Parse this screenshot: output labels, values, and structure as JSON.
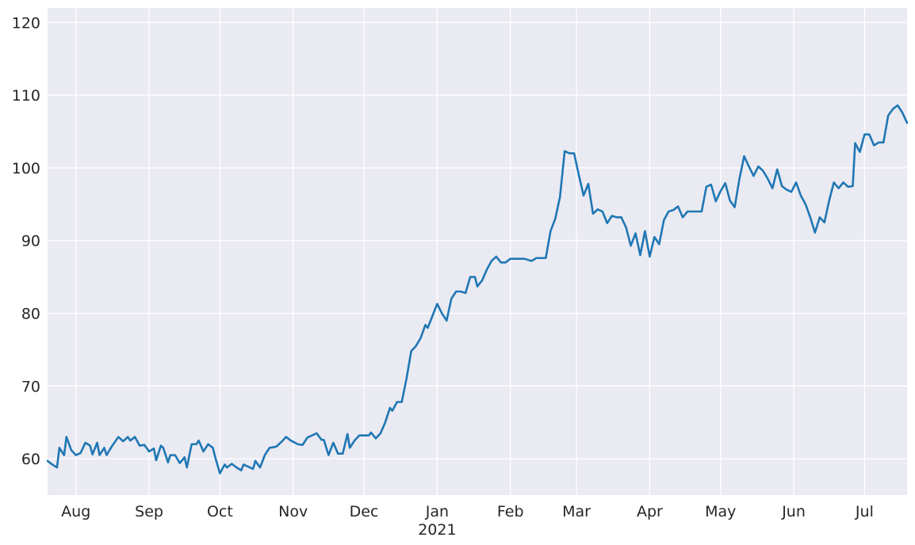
{
  "chart_data": {
    "type": "line",
    "title": "",
    "xlabel": "",
    "ylabel": "",
    "x_range": [
      "2020-07-20",
      "2021-07-19"
    ],
    "ylim": [
      55,
      122
    ],
    "grid": true,
    "legend": "none",
    "colors": {
      "background": "#EAEAF2",
      "grid": "#FFFFFF",
      "line": "#1F77B4",
      "text": "#262626"
    },
    "y_ticks": [
      60,
      70,
      80,
      90,
      100,
      110,
      120
    ],
    "x_ticks": [
      {
        "date": "2020-08-01",
        "label": "Aug"
      },
      {
        "date": "2020-09-01",
        "label": "Sep"
      },
      {
        "date": "2020-10-01",
        "label": "Oct"
      },
      {
        "date": "2020-11-01",
        "label": "Nov"
      },
      {
        "date": "2020-12-01",
        "label": "Dec"
      },
      {
        "date": "2021-01-01",
        "label": "Jan",
        "sublabel": "2021"
      },
      {
        "date": "2021-02-01",
        "label": "Feb"
      },
      {
        "date": "2021-03-01",
        "label": "Mar"
      },
      {
        "date": "2021-04-01",
        "label": "Apr"
      },
      {
        "date": "2021-05-01",
        "label": "May"
      },
      {
        "date": "2021-06-01",
        "label": "Jun"
      },
      {
        "date": "2021-07-01",
        "label": "Jul"
      }
    ],
    "series": [
      {
        "points": [
          [
            "2020-07-20",
            59.7
          ],
          [
            "2020-07-22",
            59.2
          ],
          [
            "2020-07-24",
            58.8
          ],
          [
            "2020-07-25",
            61.5
          ],
          [
            "2020-07-27",
            60.5
          ],
          [
            "2020-07-28",
            63.0
          ],
          [
            "2020-07-30",
            61.2
          ],
          [
            "2020-08-01",
            60.5
          ],
          [
            "2020-08-03",
            60.8
          ],
          [
            "2020-08-05",
            62.2
          ],
          [
            "2020-08-07",
            61.8
          ],
          [
            "2020-08-08",
            60.6
          ],
          [
            "2020-08-10",
            62.2
          ],
          [
            "2020-08-11",
            60.5
          ],
          [
            "2020-08-13",
            61.5
          ],
          [
            "2020-08-14",
            60.5
          ],
          [
            "2020-08-16",
            61.6
          ],
          [
            "2020-08-19",
            63.0
          ],
          [
            "2020-08-21",
            62.4
          ],
          [
            "2020-08-23",
            63.0
          ],
          [
            "2020-08-24",
            62.5
          ],
          [
            "2020-08-26",
            63.0
          ],
          [
            "2020-08-28",
            61.8
          ],
          [
            "2020-08-30",
            61.9
          ],
          [
            "2020-09-01",
            61.0
          ],
          [
            "2020-09-03",
            61.4
          ],
          [
            "2020-09-04",
            59.8
          ],
          [
            "2020-09-06",
            61.8
          ],
          [
            "2020-09-07",
            61.5
          ],
          [
            "2020-09-09",
            59.5
          ],
          [
            "2020-09-10",
            60.5
          ],
          [
            "2020-09-12",
            60.5
          ],
          [
            "2020-09-14",
            59.4
          ],
          [
            "2020-09-16",
            60.2
          ],
          [
            "2020-09-17",
            58.8
          ],
          [
            "2020-09-19",
            62.0
          ],
          [
            "2020-09-21",
            62.0
          ],
          [
            "2020-09-22",
            62.5
          ],
          [
            "2020-09-24",
            61.0
          ],
          [
            "2020-09-26",
            62.0
          ],
          [
            "2020-09-28",
            61.5
          ],
          [
            "2020-09-29",
            60.2
          ],
          [
            "2020-10-01",
            58.0
          ],
          [
            "2020-10-03",
            59.2
          ],
          [
            "2020-10-04",
            58.8
          ],
          [
            "2020-10-06",
            59.3
          ],
          [
            "2020-10-08",
            58.8
          ],
          [
            "2020-10-10",
            58.4
          ],
          [
            "2020-10-11",
            59.2
          ],
          [
            "2020-10-13",
            58.9
          ],
          [
            "2020-10-15",
            58.6
          ],
          [
            "2020-10-16",
            59.7
          ],
          [
            "2020-10-18",
            58.8
          ],
          [
            "2020-10-20",
            60.5
          ],
          [
            "2020-10-22",
            61.5
          ],
          [
            "2020-10-24",
            61.6
          ],
          [
            "2020-10-25",
            61.7
          ],
          [
            "2020-10-27",
            62.3
          ],
          [
            "2020-10-29",
            63.0
          ],
          [
            "2020-10-31",
            62.5
          ],
          [
            "2020-11-03",
            62.0
          ],
          [
            "2020-11-05",
            61.9
          ],
          [
            "2020-11-07",
            62.9
          ],
          [
            "2020-11-09",
            63.2
          ],
          [
            "2020-11-11",
            63.5
          ],
          [
            "2020-11-13",
            62.6
          ],
          [
            "2020-11-14",
            62.6
          ],
          [
            "2020-11-16",
            60.5
          ],
          [
            "2020-11-18",
            62.2
          ],
          [
            "2020-11-20",
            60.7
          ],
          [
            "2020-11-22",
            60.7
          ],
          [
            "2020-11-24",
            63.4
          ],
          [
            "2020-11-25",
            61.5
          ],
          [
            "2020-11-27",
            62.5
          ],
          [
            "2020-11-29",
            63.2
          ],
          [
            "2020-12-01",
            63.2
          ],
          [
            "2020-12-03",
            63.2
          ],
          [
            "2020-12-04",
            63.6
          ],
          [
            "2020-12-06",
            62.8
          ],
          [
            "2020-12-08",
            63.5
          ],
          [
            "2020-12-10",
            65.0
          ],
          [
            "2020-12-12",
            67.0
          ],
          [
            "2020-12-13",
            66.6
          ],
          [
            "2020-12-15",
            67.8
          ],
          [
            "2020-12-17",
            67.8
          ],
          [
            "2020-12-19",
            71.0
          ],
          [
            "2020-12-21",
            74.8
          ],
          [
            "2020-12-23",
            75.5
          ],
          [
            "2020-12-25",
            76.6
          ],
          [
            "2020-12-27",
            78.4
          ],
          [
            "2020-12-28",
            78.0
          ],
          [
            "2021-01-01",
            81.3
          ],
          [
            "2021-01-03",
            80.0
          ],
          [
            "2021-01-05",
            79.0
          ],
          [
            "2021-01-07",
            82.0
          ],
          [
            "2021-01-09",
            83.0
          ],
          [
            "2021-01-11",
            83.0
          ],
          [
            "2021-01-13",
            82.8
          ],
          [
            "2021-01-15",
            85.0
          ],
          [
            "2021-01-17",
            85.0
          ],
          [
            "2021-01-18",
            83.7
          ],
          [
            "2021-01-20",
            84.5
          ],
          [
            "2021-01-22",
            86.0
          ],
          [
            "2021-01-24",
            87.2
          ],
          [
            "2021-01-26",
            87.8
          ],
          [
            "2021-01-28",
            87.0
          ],
          [
            "2021-01-30",
            87.0
          ],
          [
            "2021-02-01",
            87.5
          ],
          [
            "2021-02-03",
            87.5
          ],
          [
            "2021-02-05",
            87.5
          ],
          [
            "2021-02-07",
            87.5
          ],
          [
            "2021-02-10",
            87.2
          ],
          [
            "2021-02-12",
            87.6
          ],
          [
            "2021-02-14",
            87.6
          ],
          [
            "2021-02-16",
            87.6
          ],
          [
            "2021-02-18",
            91.3
          ],
          [
            "2021-02-20",
            93.0
          ],
          [
            "2021-02-22",
            96.0
          ],
          [
            "2021-02-24",
            102.3
          ],
          [
            "2021-02-26",
            102.0
          ],
          [
            "2021-02-28",
            102.0
          ],
          [
            "2021-03-02",
            99.0
          ],
          [
            "2021-03-04",
            96.2
          ],
          [
            "2021-03-06",
            97.8
          ],
          [
            "2021-03-08",
            93.7
          ],
          [
            "2021-03-10",
            94.3
          ],
          [
            "2021-03-12",
            94.0
          ],
          [
            "2021-03-14",
            92.4
          ],
          [
            "2021-03-16",
            93.4
          ],
          [
            "2021-03-18",
            93.2
          ],
          [
            "2021-03-20",
            93.2
          ],
          [
            "2021-03-22",
            91.8
          ],
          [
            "2021-03-24",
            89.3
          ],
          [
            "2021-03-26",
            91.0
          ],
          [
            "2021-03-28",
            88.0
          ],
          [
            "2021-03-30",
            91.3
          ],
          [
            "2021-04-01",
            87.8
          ],
          [
            "2021-04-03",
            90.5
          ],
          [
            "2021-04-05",
            89.5
          ],
          [
            "2021-04-07",
            92.8
          ],
          [
            "2021-04-09",
            94.0
          ],
          [
            "2021-04-11",
            94.2
          ],
          [
            "2021-04-13",
            94.7
          ],
          [
            "2021-04-15",
            93.2
          ],
          [
            "2021-04-17",
            94.0
          ],
          [
            "2021-04-19",
            94.0
          ],
          [
            "2021-04-21",
            94.0
          ],
          [
            "2021-04-23",
            94.0
          ],
          [
            "2021-04-25",
            97.4
          ],
          [
            "2021-04-27",
            97.7
          ],
          [
            "2021-04-29",
            95.4
          ],
          [
            "2021-05-01",
            96.8
          ],
          [
            "2021-05-03",
            97.9
          ],
          [
            "2021-05-05",
            95.5
          ],
          [
            "2021-05-07",
            94.6
          ],
          [
            "2021-05-09",
            98.5
          ],
          [
            "2021-05-11",
            101.6
          ],
          [
            "2021-05-13",
            100.2
          ],
          [
            "2021-05-15",
            98.9
          ],
          [
            "2021-05-17",
            100.2
          ],
          [
            "2021-05-19",
            99.6
          ],
          [
            "2021-05-21",
            98.5
          ],
          [
            "2021-05-23",
            97.2
          ],
          [
            "2021-05-25",
            99.8
          ],
          [
            "2021-05-27",
            97.5
          ],
          [
            "2021-05-29",
            97.0
          ],
          [
            "2021-05-31",
            96.7
          ],
          [
            "2021-06-02",
            98.0
          ],
          [
            "2021-06-04",
            96.2
          ],
          [
            "2021-06-06",
            95.0
          ],
          [
            "2021-06-08",
            93.2
          ],
          [
            "2021-06-10",
            91.1
          ],
          [
            "2021-06-12",
            93.2
          ],
          [
            "2021-06-14",
            92.5
          ],
          [
            "2021-06-16",
            95.5
          ],
          [
            "2021-06-18",
            98.0
          ],
          [
            "2021-06-20",
            97.2
          ],
          [
            "2021-06-22",
            98.0
          ],
          [
            "2021-06-24",
            97.4
          ],
          [
            "2021-06-26",
            97.5
          ],
          [
            "2021-06-27",
            103.4
          ],
          [
            "2021-06-29",
            102.2
          ],
          [
            "2021-07-01",
            104.6
          ],
          [
            "2021-07-03",
            104.6
          ],
          [
            "2021-07-05",
            103.1
          ],
          [
            "2021-07-07",
            103.5
          ],
          [
            "2021-07-09",
            103.5
          ],
          [
            "2021-07-11",
            107.2
          ],
          [
            "2021-07-13",
            108.1
          ],
          [
            "2021-07-15",
            108.6
          ],
          [
            "2021-07-17",
            107.6
          ],
          [
            "2021-07-19",
            106.2
          ]
        ]
      }
    ]
  }
}
